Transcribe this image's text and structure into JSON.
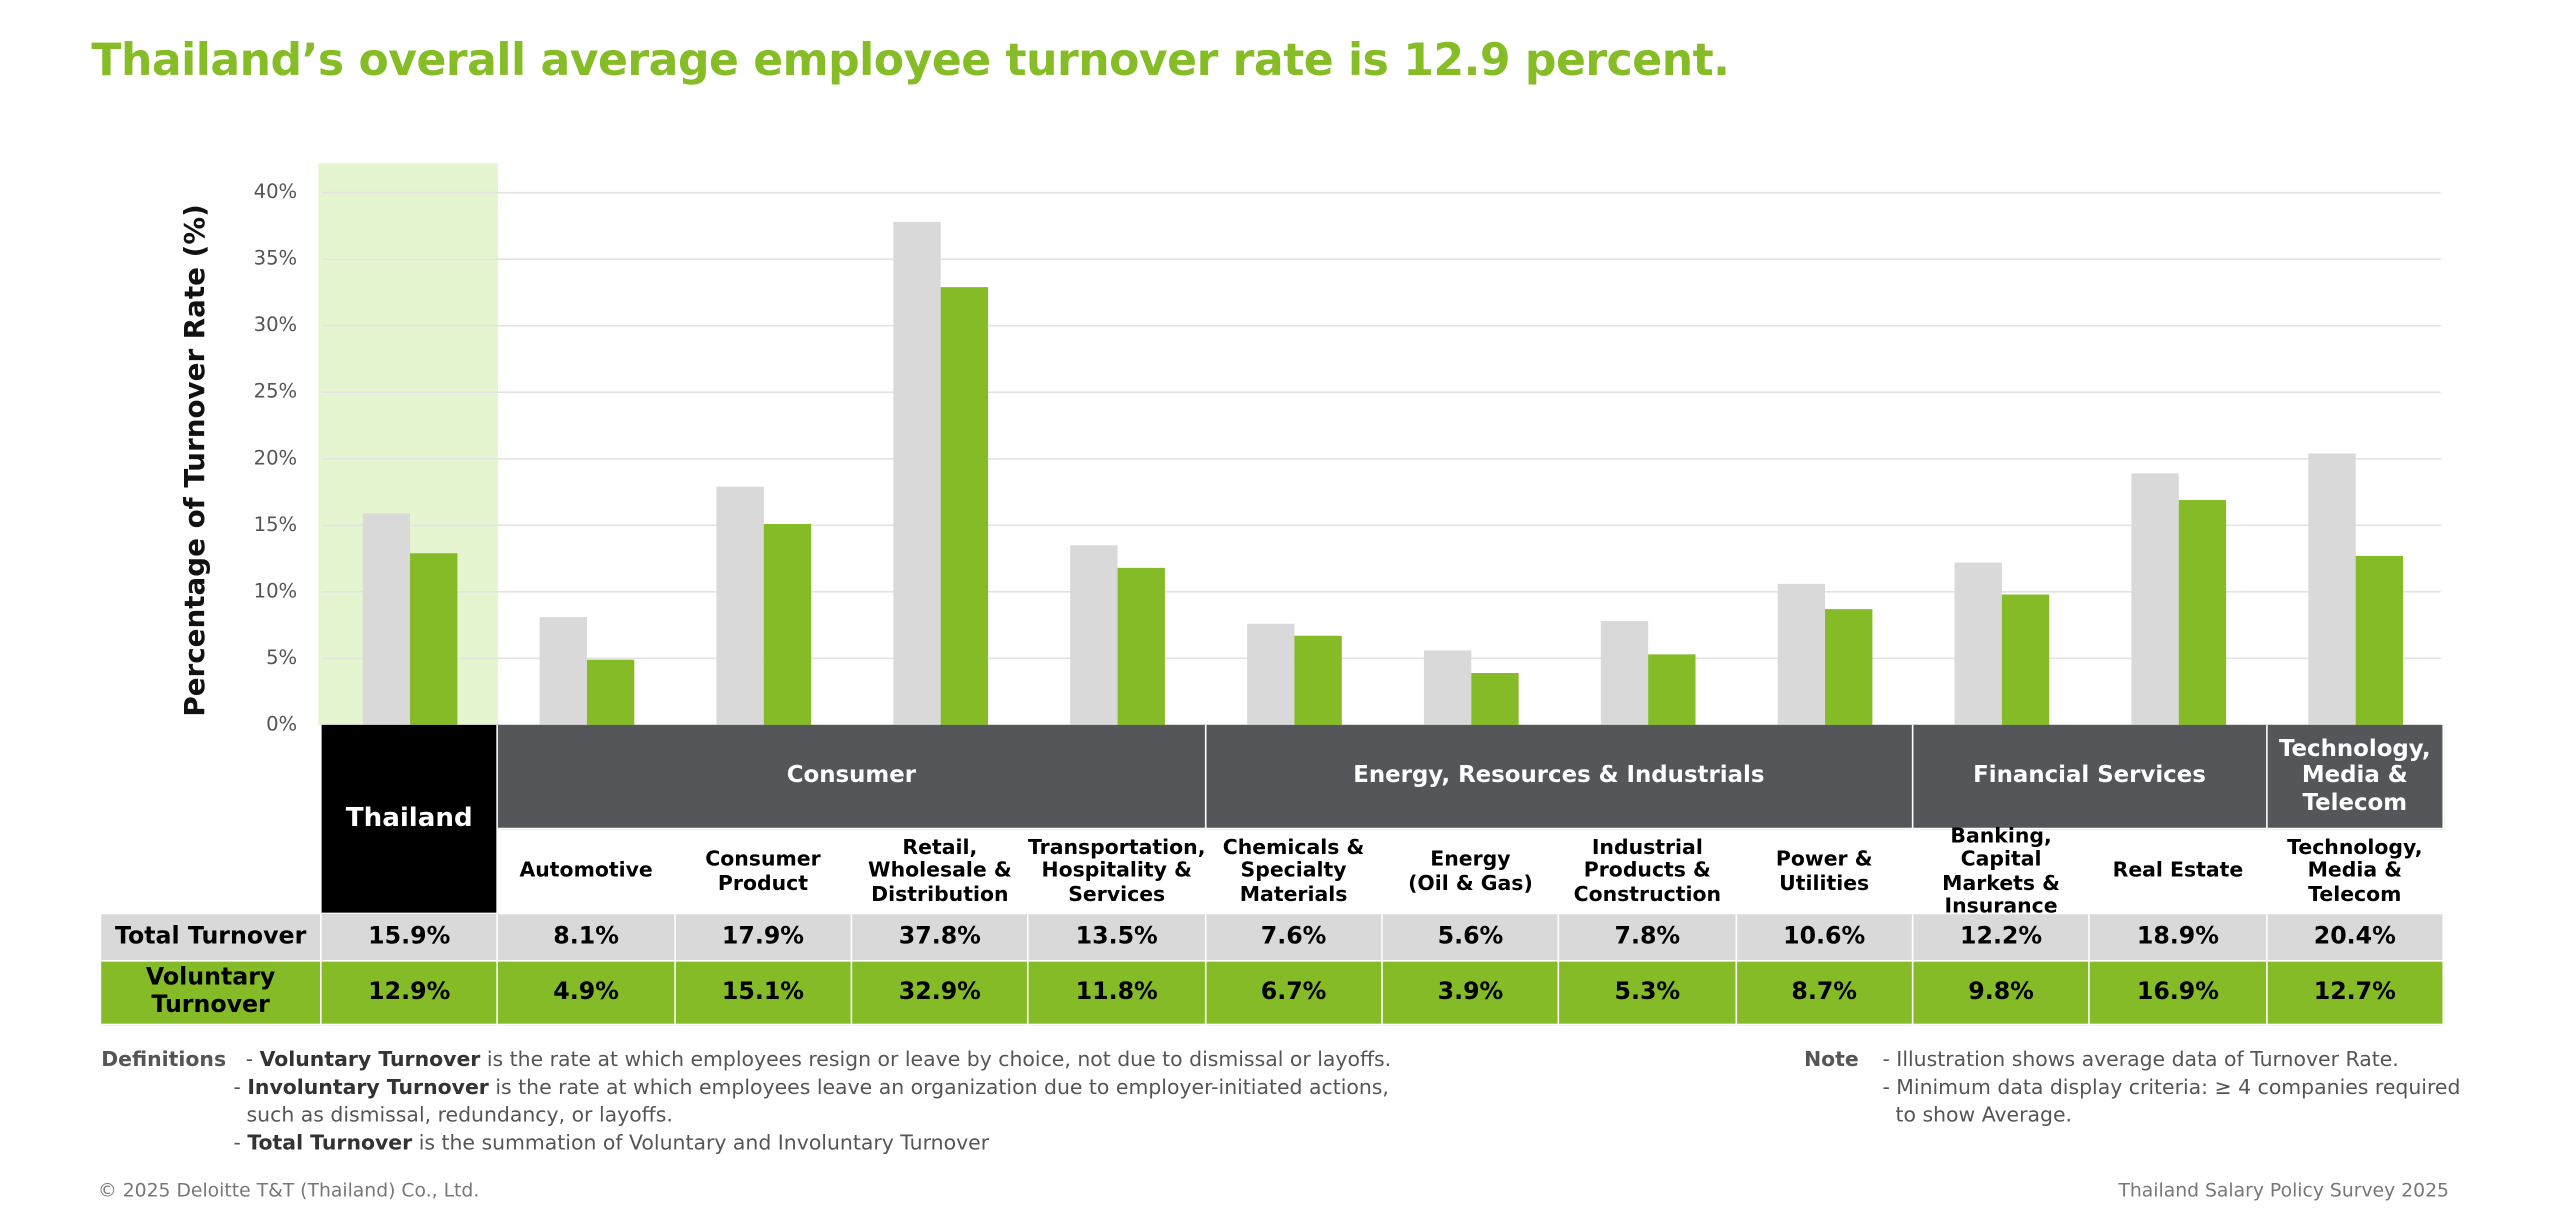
{
  "chart_data": {
    "type": "bar",
    "title": "Thailand’s overall average employee turnover rate is 12.9 percent.",
    "y_label": "Percentage of Turnover Rate (%)",
    "groups": [
      "Thailand",
      "Consumer",
      "Consumer",
      "Consumer",
      "Consumer",
      "Energy, Resources & Industrials",
      "Energy, Resources & Industrials",
      "Energy, Resources & Industrials",
      "Energy, Resources & Industrials",
      "Financial Services",
      "Financial Services",
      "Technology,\nMedia &\nTelecom"
    ],
    "categories": [
      null,
      "Automotive",
      "Consumer\nProduct",
      "Retail,\nWholesale &\nDistribution",
      "Transportation,\nHospitality &\nServices",
      "Chemicals &\nSpecialty\nMaterials",
      "Energy\n(Oil & Gas)",
      "Industrial\nProducts &\nConstruction",
      "Power &\nUtilities",
      "Banking, Capital\nMarkets &\nInsurance",
      "Real Estate",
      "Technology,\nMedia &\nTelecom"
    ],
    "series": [
      {
        "name": "Total Turnover",
        "color": "#d9d9d9",
        "values": [
          15.9,
          8.1,
          17.9,
          37.8,
          13.5,
          7.6,
          5.6,
          7.8,
          10.6,
          12.2,
          18.9,
          20.4
        ],
        "value_labels": [
          "15.9%",
          "8.1%",
          "17.9%",
          "37.8%",
          "13.5%",
          "7.6%",
          "5.6%",
          "7.8%",
          "10.6%",
          "12.2%",
          "18.9%",
          "20.4%"
        ]
      },
      {
        "name": "Voluntary\nTurnover",
        "color": "#84bb26",
        "values": [
          12.9,
          4.9,
          15.1,
          32.9,
          11.8,
          6.7,
          3.9,
          5.3,
          8.7,
          9.8,
          16.9,
          12.7
        ],
        "value_labels": [
          "12.9%",
          "4.9%",
          "15.1%",
          "32.9%",
          "11.8%",
          "6.7%",
          "3.9%",
          "5.3%",
          "8.7%",
          "9.8%",
          "16.9%",
          "12.7%"
        ]
      }
    ],
    "ylim": [
      0,
      40
    ],
    "yticks": [
      {
        "value": 0,
        "label": "0%"
      },
      {
        "value": 5,
        "label": "5%"
      },
      {
        "value": 10,
        "label": "10%"
      },
      {
        "value": 15,
        "label": "15%"
      },
      {
        "value": 20,
        "label": "20%"
      },
      {
        "value": 25,
        "label": "25%"
      },
      {
        "value": 30,
        "label": "30%"
      },
      {
        "value": 35,
        "label": "35%"
      },
      {
        "value": 40,
        "label": "40%"
      }
    ],
    "grid": true,
    "definitions": {
      "label": "Definitions",
      "items": [
        {
          "term": "Voluntary Turnover",
          "text": " is the rate at which employees resign or leave by choice, not due to dismissal or layoffs."
        },
        {
          "term": "Involuntary Turnover",
          "text": " is the rate at which employees leave an organization due to employer-initiated actions,\nsuch as dismissal, redundancy, or layoffs."
        },
        {
          "term": "Total Turnover",
          "text": " is the summation of Voluntary and Involuntary Turnover"
        }
      ]
    },
    "note": {
      "label": "Note",
      "items": [
        "Illustration shows average data of Turnover Rate.",
        "Minimum data display criteria: ≥ 4 companies required\nto show Average."
      ]
    },
    "footer_left": "© 2025 Deloitte T&T (Thailand) Co., Ltd.",
    "footer_right": "Thailand Salary Policy Survey 2025"
  }
}
